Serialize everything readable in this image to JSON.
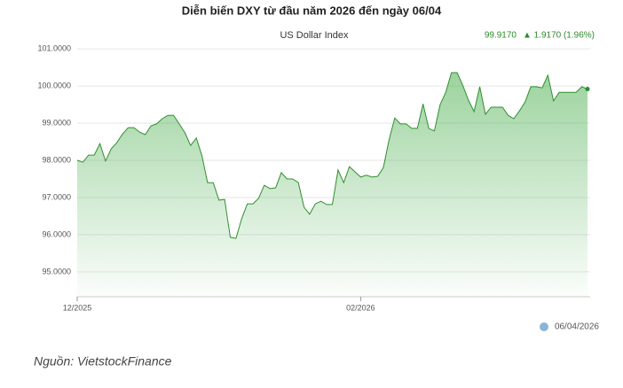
{
  "chart_data": {
    "type": "area",
    "title": "Diễn biến DXY từ đầu năm 2026 đến ngày 06/04",
    "subtitle": "US Dollar Index",
    "last_value": "99.9170",
    "change": "▲ 1.9170 (1.96%)",
    "date": "06/04/2026",
    "source": "Nguồn: VietstockFinance",
    "categories": [
      "12/2025",
      null,
      null,
      null,
      null,
      null,
      null,
      null,
      null,
      null,
      null,
      null,
      null,
      null,
      null,
      null,
      null,
      null,
      null,
      null,
      null,
      null,
      null,
      null,
      null,
      null,
      null,
      null,
      null,
      null,
      null,
      null,
      null,
      null,
      null,
      null,
      null,
      null,
      null,
      null,
      null,
      null,
      null,
      null,
      null,
      null,
      null,
      null,
      null,
      null,
      "02/2026",
      null,
      null,
      null,
      null,
      null,
      null,
      null,
      null,
      null,
      null,
      null,
      null,
      null,
      null,
      null,
      null,
      null,
      null,
      null,
      null,
      null,
      null,
      null,
      null,
      null,
      null,
      null,
      null,
      null,
      null,
      null,
      null,
      null,
      null,
      null,
      null,
      null,
      null,
      null,
      null
    ],
    "series": [
      {
        "name": "US Dollar Index",
        "color": "#2f8f2f",
        "values": [
          98.0,
          97.95,
          98.14,
          98.14,
          98.45,
          97.98,
          98.31,
          98.48,
          98.71,
          98.88,
          98.88,
          98.76,
          98.69,
          98.93,
          98.98,
          99.12,
          99.21,
          99.21,
          98.98,
          98.74,
          98.4,
          98.6,
          98.12,
          97.4,
          97.4,
          96.93,
          96.95,
          95.93,
          95.9,
          96.43,
          96.83,
          96.83,
          96.98,
          97.33,
          97.24,
          97.26,
          97.67,
          97.5,
          97.5,
          97.4,
          96.74,
          96.55,
          96.83,
          96.9,
          96.81,
          96.81,
          97.74,
          97.4,
          97.83,
          97.69,
          97.55,
          97.6,
          97.55,
          97.57,
          97.81,
          98.55,
          99.14,
          98.98,
          98.98,
          98.86,
          98.86,
          99.52,
          98.86,
          98.79,
          99.5,
          99.83,
          100.36,
          100.36,
          100.02,
          99.62,
          99.31,
          99.98,
          99.24,
          99.43,
          99.43,
          99.43,
          99.21,
          99.12,
          99.33,
          99.57,
          99.98,
          99.98,
          99.95,
          100.29,
          99.6,
          99.83,
          99.83,
          99.83,
          99.83,
          99.98,
          99.917
        ]
      }
    ],
    "ylim": [
      94.33,
      101.36
    ],
    "yticks": [
      {
        "value": 95,
        "label": "95.0000"
      },
      {
        "value": 96,
        "label": "96.0000"
      },
      {
        "value": 97,
        "label": "97.0000"
      },
      {
        "value": 98,
        "label": "98.0000"
      },
      {
        "value": 99,
        "label": "99.0000"
      },
      {
        "value": 100,
        "label": "100.0000"
      },
      {
        "value": 101,
        "label": "101.0000"
      }
    ],
    "grid": true
  }
}
